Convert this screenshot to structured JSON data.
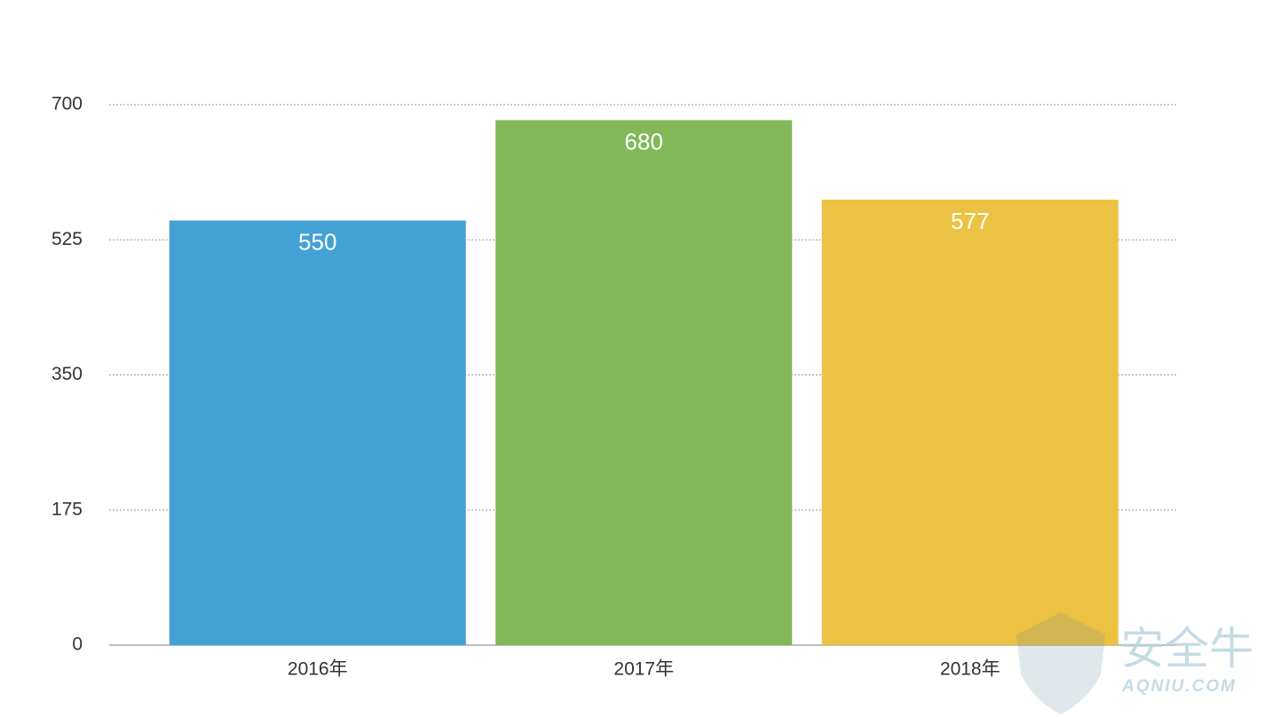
{
  "chart_data": {
    "type": "bar",
    "categories": [
      "2016年",
      "2017年",
      "2018年"
    ],
    "values": [
      550,
      680,
      577
    ],
    "colors": [
      "#43a1d5",
      "#82b858",
      "#ecc242"
    ],
    "ylim": [
      0,
      700
    ],
    "yticks": [
      0,
      175,
      350,
      525,
      700
    ],
    "grid": true,
    "watermark": [
      "安全牛",
      "AQNIU.COM"
    ]
  }
}
